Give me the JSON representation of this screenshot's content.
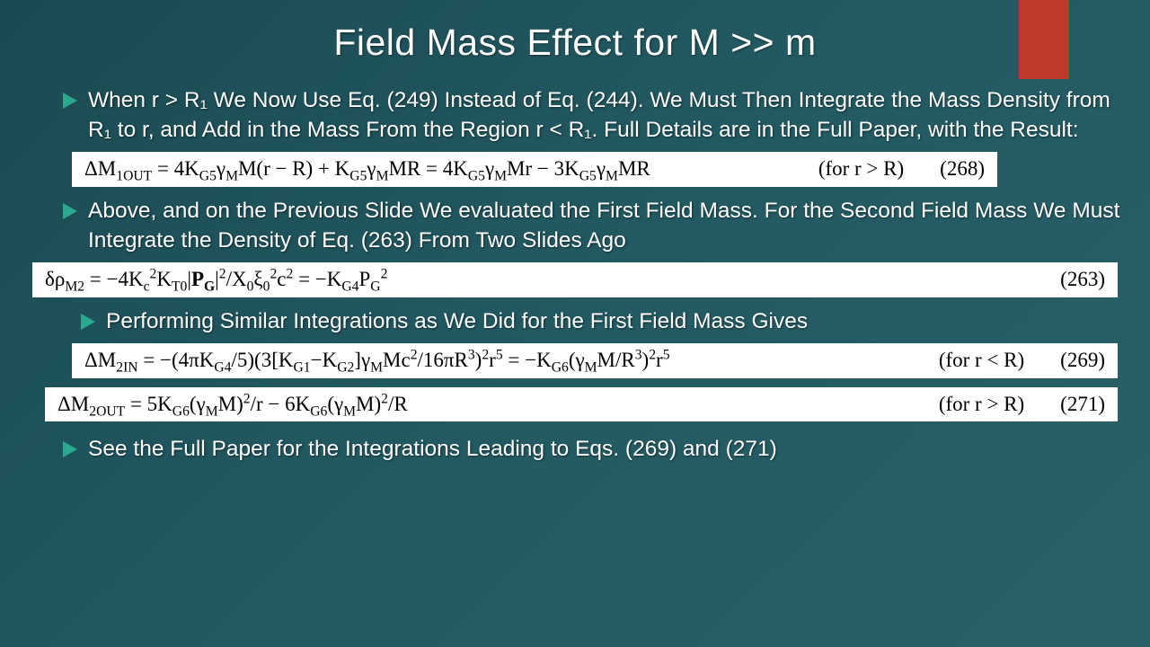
{
  "accent_color": "#c0392b",
  "title": "Field Mass Effect for M >> m",
  "bullets": {
    "b1": "When r > R₁ We Now Use Eq. (249) Instead of Eq. (244). We Must Then Integrate the Mass Density from R₁ to r, and Add in the Mass From the Region r < R₁. Full Details are in the Full Paper, with the Result:",
    "b2": "Above, and on the Previous Slide We evaluated the First Field Mass. For the Second Field Mass We Must Integrate the Density of Eq. (263) From Two Slides Ago",
    "b3": "Performing Similar Integrations as We Did for the First Field Mass Gives",
    "b4": "See the Full Paper for the Integrations Leading to Eqs. (269) and (271)"
  },
  "equations": {
    "eq268": {
      "text_html": "ΔM<sub>1OUT</sub> = 4K<sub>G5</sub>γ<sub>M</sub>M(r − R) + K<sub>G5</sub>γ<sub>M</sub>MR = 4K<sub>G5</sub>γ<sub>M</sub>Mr − 3K<sub>G5</sub>γ<sub>M</sub>MR",
      "condition": "(for r > R)",
      "number": "(268)"
    },
    "eq263": {
      "text_html": "δρ<sub>M2</sub> = −4K<sub>c</sub><sup>2</sup>K<sub>T0</sub>|<b>P<sub>G</sub></b>|<sup>2</sup>/X<sub>0</sub>ξ<sub>0</sub><sup>2</sup>c<sup>2</sup> = −K<sub>G4</sub>P<sub>G</sub><sup>2</sup>",
      "condition": "",
      "number": "(263)"
    },
    "eq269": {
      "text_html": "ΔM<sub>2IN</sub> = −(4πK<sub>G4</sub>/5)(3[K<sub>G1</sub>−K<sub>G2</sub>]γ<sub>M</sub>Mc<sup>2</sup>/16πR<sup>3</sup>)<sup>2</sup>r<sup>5</sup> = −K<sub>G6</sub>(γ<sub>M</sub>M/R<sup>3</sup>)<sup>2</sup>r<sup>5</sup>",
      "condition": "(for r < R)",
      "number": "(269)"
    },
    "eq271": {
      "text_html": "ΔM<sub>2OUT</sub> = 5K<sub>G6</sub>(γ<sub>M</sub>M)<sup>2</sup>/r − 6K<sub>G6</sub>(γ<sub>M</sub>M)<sup>2</sup>/R",
      "condition": "(for r > R)",
      "number": "(271)"
    }
  },
  "bullet_arrow_color": "#2aa98f"
}
